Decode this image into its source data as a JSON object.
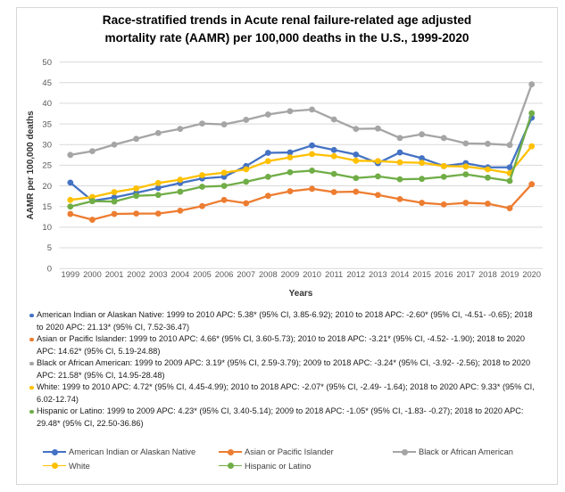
{
  "chart_data": {
    "type": "line",
    "title": "Race-stratified trends in Acute renal failure-related age adjusted mortality rate (AAMR) per 100,000 deaths in the U.S., 1999-2020",
    "title_lines": [
      "Race-stratified trends in Acute renal failure-related age adjusted",
      "mortality rate (AAMR) per 100,000 deaths in the U.S., 1999-2020"
    ],
    "xlabel": "Years",
    "ylabel": "AAMR per 100,000 deaths",
    "ylim": [
      0,
      50
    ],
    "ytick_step": 5,
    "yticks": [
      0,
      5,
      10,
      15,
      20,
      25,
      30,
      35,
      40,
      45,
      50
    ],
    "grid": true,
    "legend_position": "bottom",
    "categories": [
      "1999",
      "2000",
      "2001",
      "2002",
      "2003",
      "2004",
      "2005",
      "2006",
      "2007",
      "2008",
      "2009",
      "2010",
      "2011",
      "2012",
      "2013",
      "2014",
      "2015",
      "2016",
      "2017",
      "2018",
      "2019",
      "2020"
    ],
    "series": [
      {
        "name": "American Indian or Alaskan Native",
        "color": "#4472C4",
        "values": [
          20.8,
          16.4,
          17.2,
          18.3,
          19.5,
          20.7,
          21.8,
          22.2,
          24.8,
          28.0,
          28.1,
          29.8,
          28.7,
          27.6,
          25.5,
          28.1,
          26.7,
          24.8,
          25.5,
          24.5,
          24.5,
          36.5
        ]
      },
      {
        "name": "Asian or Pacific Islander",
        "color": "#ED7D31",
        "values": [
          13.2,
          11.8,
          13.2,
          13.3,
          13.3,
          14.0,
          15.1,
          16.6,
          15.8,
          17.6,
          18.7,
          19.3,
          18.5,
          18.6,
          17.8,
          16.8,
          15.9,
          15.5,
          15.9,
          15.7,
          14.6,
          20.4
        ]
      },
      {
        "name": "Black or African American",
        "color": "#A5A5A5",
        "values": [
          27.5,
          28.4,
          30.0,
          31.4,
          32.8,
          33.8,
          35.1,
          34.9,
          36.0,
          37.3,
          38.1,
          38.5,
          36.1,
          33.8,
          33.9,
          31.6,
          32.5,
          31.6,
          30.3,
          30.2,
          29.9,
          44.6
        ]
      },
      {
        "name": "White",
        "color": "#FFC000",
        "values": [
          16.6,
          17.3,
          18.5,
          19.4,
          20.7,
          21.5,
          22.6,
          23.2,
          24.0,
          26.0,
          26.9,
          27.7,
          27.2,
          26.1,
          26.0,
          25.7,
          25.6,
          24.8,
          24.7,
          24.0,
          23.1,
          29.6
        ]
      },
      {
        "name": "Hispanic or Latino",
        "color": "#70AD47",
        "values": [
          15.0,
          16.3,
          16.2,
          17.6,
          17.8,
          18.6,
          19.8,
          20.0,
          21.0,
          22.2,
          23.3,
          23.7,
          22.9,
          21.9,
          22.3,
          21.6,
          21.7,
          22.2,
          22.8,
          22.0,
          21.2,
          37.6
        ]
      }
    ],
    "annotations": [
      {
        "series": "American Indian or Alaskan Native",
        "color": "#4472C4",
        "text": "American Indian or Alaskan Native: 1999 to 2010 APC: 5.38* (95% CI, 3.85-6.92); 2010 to 2018 APC: -2.60* (95% CI, -4.51- -0.65); 2018 to 2020 APC: 21.13* (95% CI, 7.52-36.47)"
      },
      {
        "series": "Asian or Pacific Islander",
        "color": "#ED7D31",
        "text": "Asian or Pacific Islander: 1999 to 2010 APC: 4.66* (95% CI, 3.60-5.73); 2010 to 2018 APC: -3.21* (95% CI, -4.52- -1.90); 2018 to 2020 APC: 14.62* (95% CI, 5.19-24.88)"
      },
      {
        "series": "Black or African American",
        "color": "#A5A5A5",
        "text": "Black or African American: 1999 to 2009 APC: 3.19* (95% CI, 2.59-3.79); 2009 to 2018 APC: -3.24* (95% CI, -3.92- -2.56); 2018 to 2020 APC: 21.58* (95% CI, 14.95-28.48)"
      },
      {
        "series": "White",
        "color": "#FFC000",
        "text": "White: 1999 to 2010 APC: 4.72* (95% CI, 4.45-4.99); 2010 to 2018 APC: -2.07* (95% CI, -2.49- -1.64); 2018 to 2020 APC: 9.33* (95% CI, 6.02-12.74)"
      },
      {
        "series": "Hispanic or Latino",
        "color": "#70AD47",
        "text": "Hispanic or Latino: 1999 to 2009 APC: 4.23* (95% CI, 3.40-5.14); 2009 to 2018 APC: -1.05* (95% CI, -1.83- -0.27); 2018 to 2020 APC: 29.48* (95% CI, 22.50-36.86)"
      }
    ],
    "legend": [
      {
        "label": "American Indian or Alaskan Native",
        "color": "#4472C4"
      },
      {
        "label": "Asian or Pacific Islander",
        "color": "#ED7D31"
      },
      {
        "label": "Black or African American",
        "color": "#A5A5A5"
      },
      {
        "label": "White",
        "color": "#FFC000"
      },
      {
        "label": "Hispanic or Latino",
        "color": "#70AD47"
      }
    ],
    "colors": {
      "gridline": "#d9d9d9",
      "tick_label": "#595959",
      "axis_title": "#333333",
      "title": "#000000",
      "annotation_text": "#1a1a1a",
      "border": "#d7d7d7"
    }
  }
}
